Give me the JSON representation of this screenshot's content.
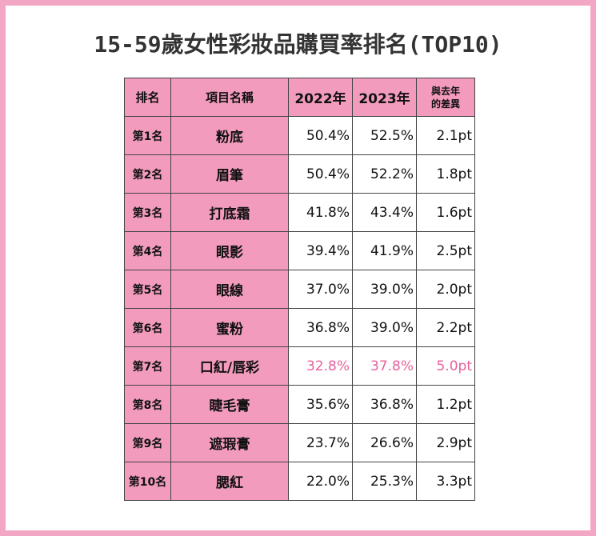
{
  "title": "15-59歲女性彩妝品購買率排名(TOP10)",
  "chart_data": {
    "type": "table",
    "title": "15-59歲女性彩妝品購買率排名(TOP10)",
    "columns": {
      "rank": "排名",
      "item": "項目名稱",
      "y2022": "2022年",
      "y2023": "2023年",
      "diff_line1": "與去年",
      "diff_line2": "的差異"
    },
    "highlight_color": "#e8609a",
    "header_color": "#f29bbd",
    "rows": [
      {
        "rank": "第1名",
        "item": "粉底",
        "y2022": "50.4%",
        "y2023": "52.5%",
        "diff": "2.1pt",
        "highlight": false
      },
      {
        "rank": "第2名",
        "item": "眉筆",
        "y2022": "50.4%",
        "y2023": "52.2%",
        "diff": "1.8pt",
        "highlight": false
      },
      {
        "rank": "第3名",
        "item": "打底霜",
        "y2022": "41.8%",
        "y2023": "43.4%",
        "diff": "1.6pt",
        "highlight": false
      },
      {
        "rank": "第4名",
        "item": "眼影",
        "y2022": "39.4%",
        "y2023": "41.9%",
        "diff": "2.5pt",
        "highlight": false
      },
      {
        "rank": "第5名",
        "item": "眼線",
        "y2022": "37.0%",
        "y2023": "39.0%",
        "diff": "2.0pt",
        "highlight": false
      },
      {
        "rank": "第6名",
        "item": "蜜粉",
        "y2022": "36.8%",
        "y2023": "39.0%",
        "diff": "2.2pt",
        "highlight": false
      },
      {
        "rank": "第7名",
        "item": "口紅/唇彩",
        "y2022": "32.8%",
        "y2023": "37.8%",
        "diff": "5.0pt",
        "highlight": true
      },
      {
        "rank": "第8名",
        "item": "睫毛膏",
        "y2022": "35.6%",
        "y2023": "36.8%",
        "diff": "1.2pt",
        "highlight": false
      },
      {
        "rank": "第9名",
        "item": "遮瑕膏",
        "y2022": "23.7%",
        "y2023": "26.6%",
        "diff": "2.9pt",
        "highlight": false
      },
      {
        "rank": "第10名",
        "item": "腮紅",
        "y2022": "22.0%",
        "y2023": "25.3%",
        "diff": "3.3pt",
        "highlight": false
      }
    ]
  }
}
